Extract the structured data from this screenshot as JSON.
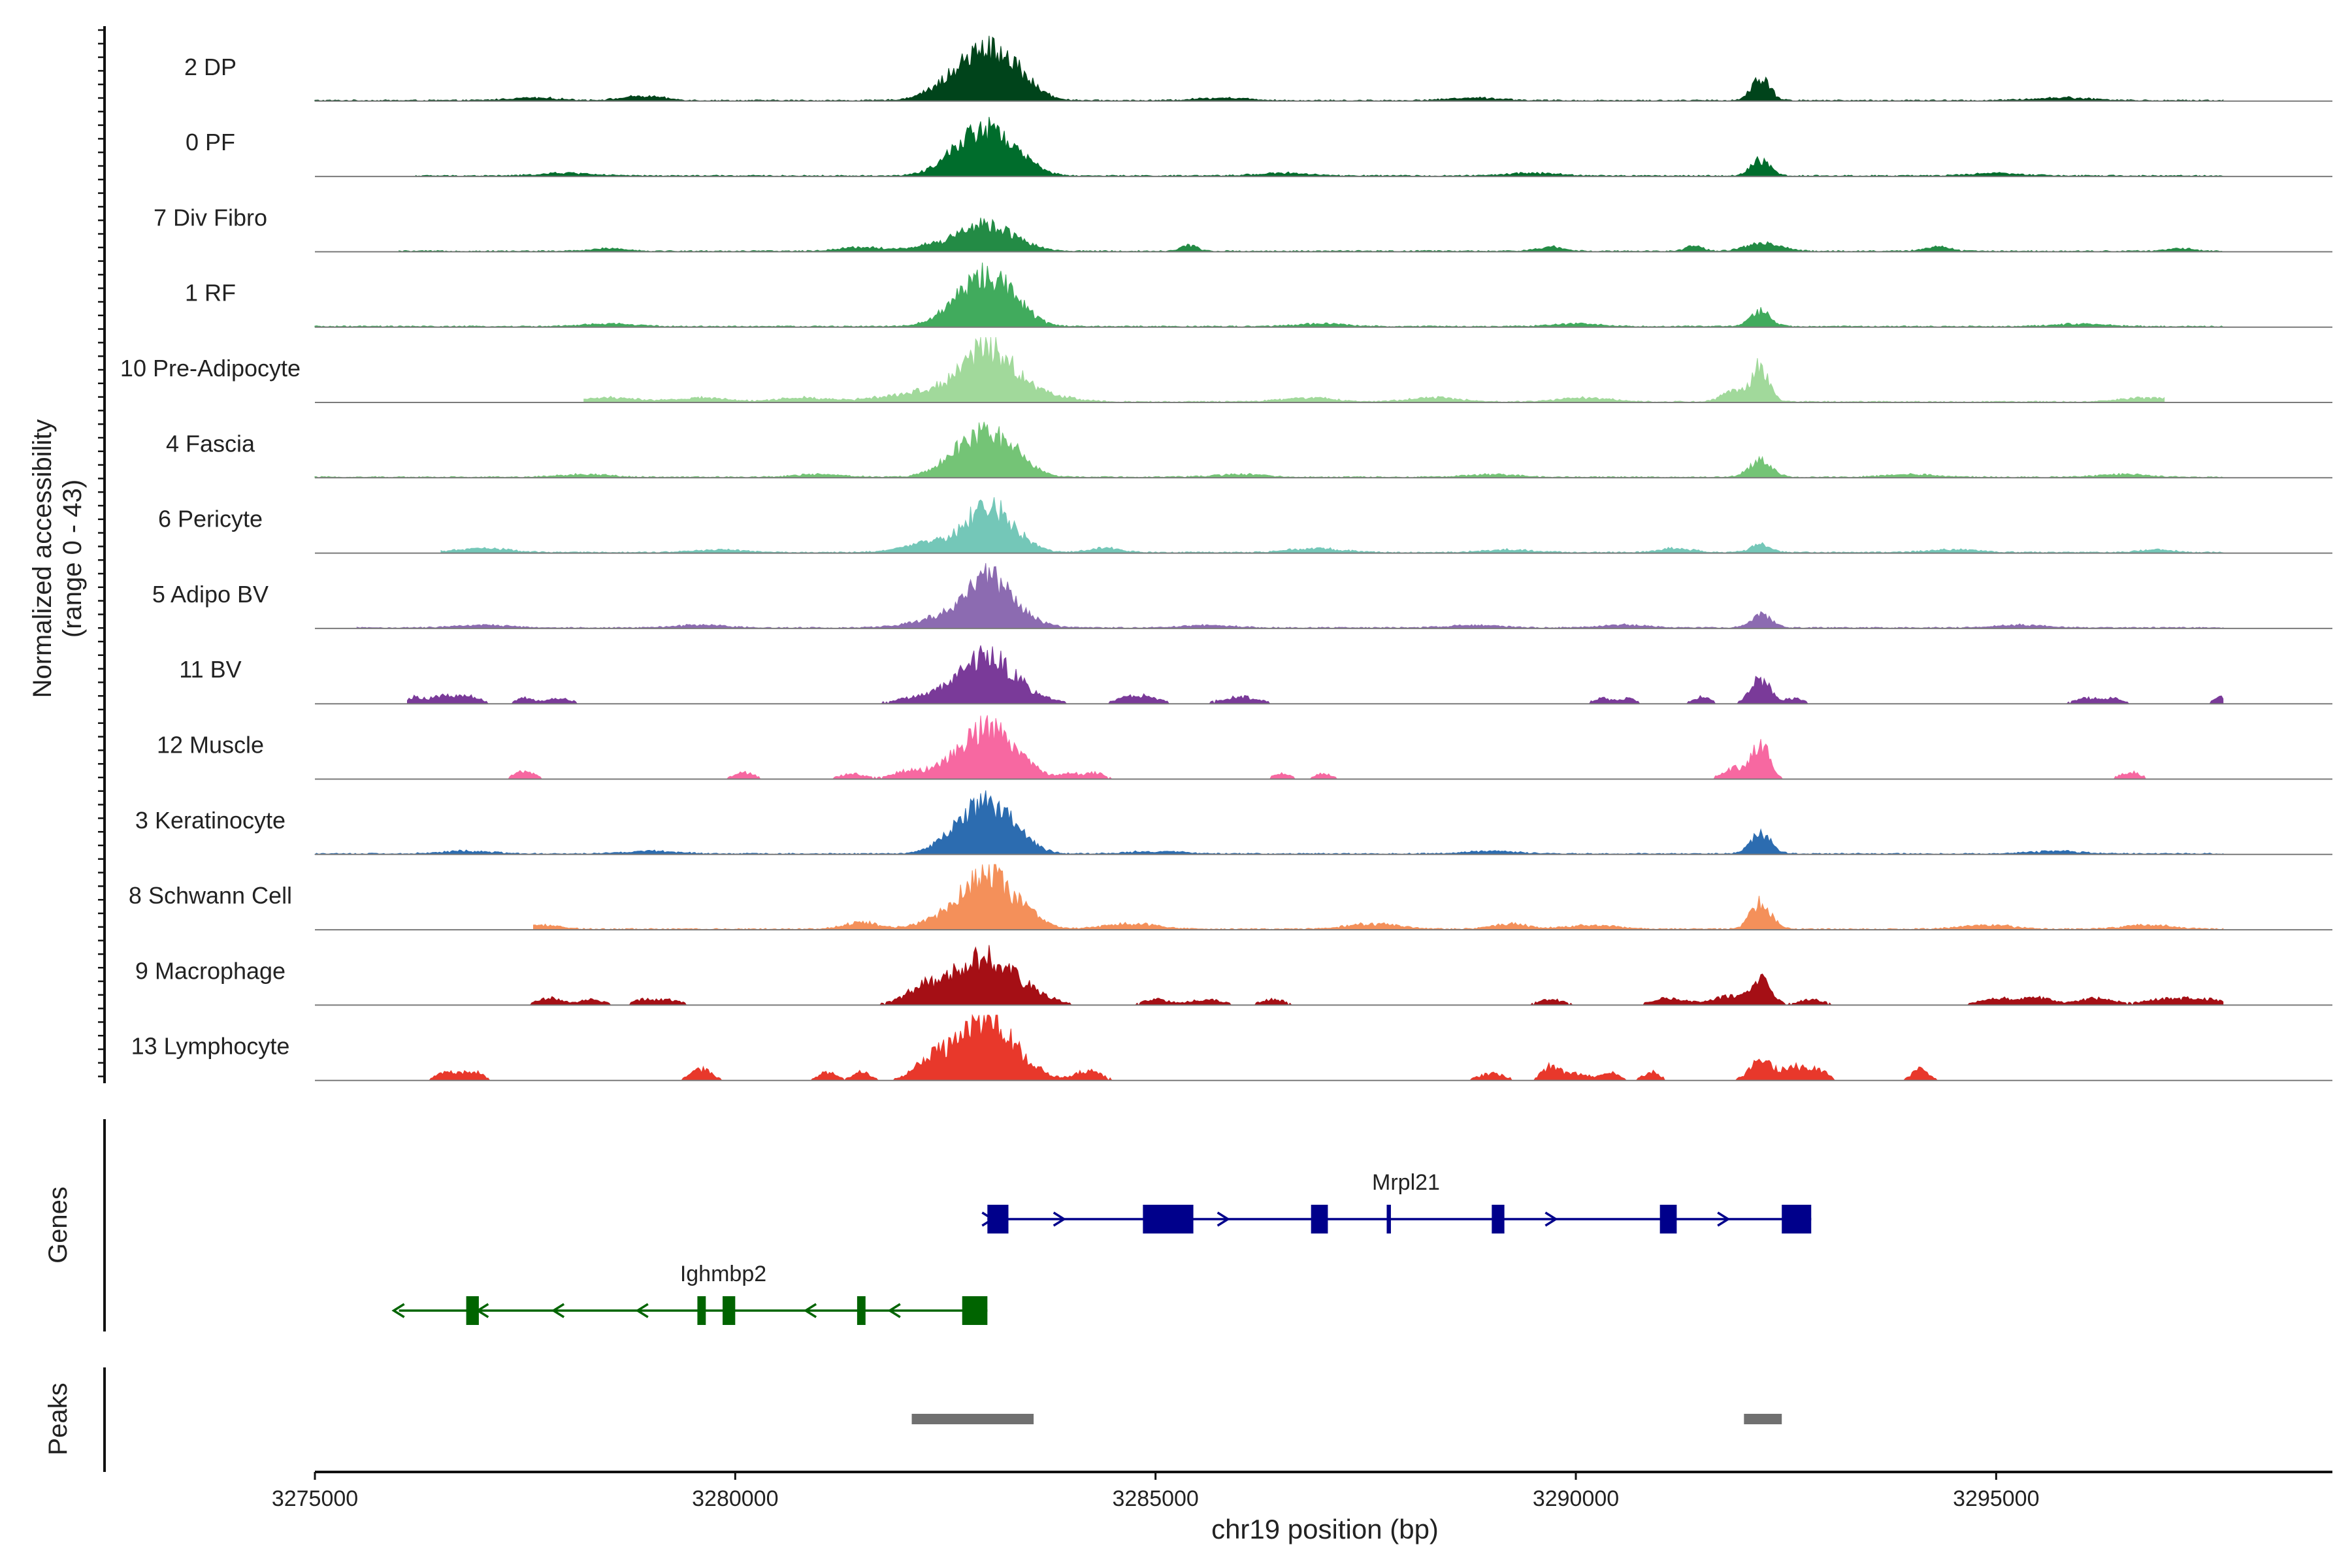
{
  "chart_data": {
    "type": "area",
    "subtype": "genome-coverage-track",
    "y_axis_title_line1": "Normalized accessibility",
    "y_axis_title_line2": "(range 0 - 43)",
    "y_range": [
      0,
      43
    ],
    "x_axis_title": "chr19 position (bp)",
    "x_range": [
      3275000,
      3299000
    ],
    "x_ticks": [
      3275000,
      3280000,
      3285000,
      3290000,
      3295000
    ],
    "x_tick_labels": [
      "3275000",
      "3280000",
      "3285000",
      "3290000",
      "3295000"
    ],
    "tracks": [
      {
        "label": "2 DP",
        "color": "#00441b",
        "coverage_start": 3275000,
        "coverage_end": 3297700,
        "peaks": [
          [
            3283000,
            34,
            330
          ],
          [
            3282600,
            7,
            300
          ],
          [
            3283350,
            6,
            220
          ],
          [
            3292200,
            16,
            110
          ],
          [
            3278900,
            3,
            250
          ],
          [
            3285800,
            2,
            300
          ],
          [
            3288800,
            2,
            300
          ],
          [
            3295800,
            2,
            350
          ],
          [
            3277600,
            2,
            300
          ]
        ],
        "sparse": false
      },
      {
        "label": "0 PF",
        "color": "#006d2c",
        "coverage_start": 3276200,
        "coverage_end": 3297700,
        "peaks": [
          [
            3283000,
            34,
            300
          ],
          [
            3282600,
            6,
            250
          ],
          [
            3283400,
            5,
            200
          ],
          [
            3292200,
            12,
            110
          ],
          [
            3278000,
            2,
            300
          ],
          [
            3286500,
            2,
            300
          ],
          [
            3289500,
            2,
            300
          ],
          [
            3295000,
            2,
            300
          ]
        ],
        "sparse": false
      },
      {
        "label": "7 Div Fibro",
        "color": "#238b45",
        "coverage_start": 3276000,
        "coverage_end": 3297700,
        "peaks": [
          [
            3283000,
            18,
            250
          ],
          [
            3282500,
            6,
            300
          ],
          [
            3283400,
            4,
            200
          ],
          [
            3292250,
            6,
            200
          ],
          [
            3281500,
            3,
            250
          ],
          [
            3285400,
            4,
            100
          ],
          [
            3289700,
            3,
            150
          ],
          [
            3291400,
            4,
            100
          ],
          [
            3294300,
            3,
            150
          ],
          [
            3278500,
            2,
            200
          ],
          [
            3297200,
            2,
            150
          ]
        ],
        "sparse": false
      },
      {
        "label": "1 RF",
        "color": "#41ab5d",
        "coverage_start": 3275000,
        "coverage_end": 3297700,
        "peaks": [
          [
            3283000,
            36,
            280
          ],
          [
            3282600,
            7,
            250
          ],
          [
            3283400,
            5,
            200
          ],
          [
            3292200,
            11,
            120
          ],
          [
            3278500,
            2,
            300
          ],
          [
            3287000,
            2,
            300
          ],
          [
            3290000,
            2,
            300
          ],
          [
            3296000,
            2,
            300
          ]
        ],
        "sparse": false
      },
      {
        "label": "10 Pre-Adipocyte",
        "color": "#a1d99b",
        "coverage_start": 3278200,
        "coverage_end": 3297000,
        "peaks": [
          [
            3283000,
            36,
            250
          ],
          [
            3282500,
            10,
            350
          ],
          [
            3283400,
            8,
            250
          ],
          [
            3292200,
            25,
            100
          ],
          [
            3291900,
            8,
            150
          ],
          [
            3278500,
            3,
            300
          ],
          [
            3279600,
            3,
            300
          ],
          [
            3280800,
            3,
            300
          ],
          [
            3281800,
            3,
            300
          ],
          [
            3283800,
            3,
            300
          ],
          [
            3286800,
            3,
            300
          ],
          [
            3288300,
            3,
            300
          ],
          [
            3290100,
            3,
            300
          ],
          [
            3296800,
            3,
            300
          ]
        ],
        "sparse": false
      },
      {
        "label": "4 Fascia",
        "color": "#74c476",
        "coverage_start": 3275000,
        "coverage_end": 3297700,
        "peaks": [
          [
            3283000,
            30,
            280
          ],
          [
            3282600,
            8,
            250
          ],
          [
            3283400,
            6,
            200
          ],
          [
            3292200,
            12,
            130
          ],
          [
            3278200,
            2,
            300
          ],
          [
            3281000,
            2,
            300
          ],
          [
            3286000,
            2,
            300
          ],
          [
            3289000,
            2,
            300
          ],
          [
            3294000,
            2,
            300
          ],
          [
            3296500,
            2,
            300
          ]
        ],
        "sparse": false
      },
      {
        "label": "6 Pericyte",
        "color": "#74c7b8",
        "coverage_start": 3276500,
        "coverage_end": 3297700,
        "peaks": [
          [
            3283000,
            34,
            250
          ],
          [
            3282300,
            7,
            300
          ],
          [
            3283400,
            5,
            200
          ],
          [
            3292200,
            6,
            120
          ],
          [
            3277000,
            3,
            300
          ],
          [
            3279800,
            2,
            300
          ],
          [
            3284400,
            3,
            200
          ],
          [
            3286900,
            3,
            300
          ],
          [
            3289200,
            2,
            300
          ],
          [
            3291200,
            3,
            200
          ],
          [
            3294500,
            2,
            300
          ],
          [
            3296900,
            2,
            200
          ]
        ],
        "sparse": false
      },
      {
        "label": "5 Adipo BV",
        "color": "#8c6bb1",
        "coverage_start": 3275500,
        "coverage_end": 3297700,
        "peaks": [
          [
            3283000,
            34,
            250
          ],
          [
            3282500,
            8,
            350
          ],
          [
            3283400,
            6,
            250
          ],
          [
            3292200,
            10,
            120
          ],
          [
            3277000,
            2,
            300
          ],
          [
            3279600,
            2,
            300
          ],
          [
            3285600,
            2,
            300
          ],
          [
            3288800,
            2,
            300
          ],
          [
            3290600,
            2,
            300
          ],
          [
            3295300,
            2,
            300
          ]
        ],
        "sparse": false
      },
      {
        "label": "11 BV",
        "color": "#7a3a99",
        "coverage_start": 3276100,
        "coverage_end": 3297700,
        "peaks": [
          [
            3283000,
            34,
            280
          ],
          [
            3282400,
            7,
            350
          ],
          [
            3283500,
            5,
            250
          ],
          [
            3292200,
            18,
            120
          ],
          [
            3291500,
            5,
            100
          ],
          [
            3276200,
            5,
            120
          ],
          [
            3276500,
            5,
            100
          ],
          [
            3276800,
            6,
            150
          ],
          [
            3277500,
            4,
            100
          ],
          [
            3277900,
            4,
            150
          ],
          [
            3284800,
            6,
            220
          ],
          [
            3286000,
            5,
            220
          ],
          [
            3290300,
            4,
            100
          ],
          [
            3290600,
            4,
            100
          ],
          [
            3292600,
            4,
            100
          ],
          [
            3296100,
            4,
            150
          ],
          [
            3296400,
            4,
            100
          ],
          [
            3297700,
            5,
            100
          ]
        ],
        "sparse": true
      },
      {
        "label": "12 Muscle",
        "color": "#f768a1",
        "coverage_start": 3277200,
        "coverage_end": 3296800,
        "peaks": [
          [
            3283000,
            36,
            280
          ],
          [
            3282500,
            7,
            300
          ],
          [
            3283400,
            8,
            200
          ],
          [
            3292200,
            26,
            100
          ],
          [
            3291900,
            8,
            150
          ],
          [
            3277500,
            6,
            120
          ],
          [
            3280100,
            5,
            120
          ],
          [
            3281400,
            4,
            150
          ],
          [
            3282000,
            4,
            150
          ],
          [
            3284000,
            4,
            150
          ],
          [
            3284300,
            4,
            100
          ],
          [
            3286500,
            4,
            100
          ],
          [
            3287000,
            4,
            100
          ],
          [
            3296600,
            5,
            120
          ]
        ],
        "sparse": true
      },
      {
        "label": "3 Keratinocyte",
        "color": "#2c6cb0",
        "coverage_start": 3275000,
        "coverage_end": 3297700,
        "peaks": [
          [
            3283000,
            34,
            280
          ],
          [
            3282600,
            7,
            250
          ],
          [
            3283400,
            5,
            200
          ],
          [
            3292200,
            14,
            120
          ],
          [
            3276800,
            2,
            300
          ],
          [
            3279000,
            2,
            300
          ],
          [
            3285000,
            2,
            300
          ],
          [
            3289000,
            2,
            300
          ],
          [
            3295700,
            2,
            300
          ]
        ],
        "sparse": false
      },
      {
        "label": "8 Schwann Cell",
        "color": "#f4905a",
        "coverage_start": 3277600,
        "coverage_end": 3297700,
        "peaks": [
          [
            3283000,
            40,
            280
          ],
          [
            3282500,
            7,
            300
          ],
          [
            3283500,
            6,
            200
          ],
          [
            3292200,
            20,
            120
          ],
          [
            3281500,
            5,
            200
          ],
          [
            3284700,
            4,
            300
          ],
          [
            3287600,
            4,
            300
          ],
          [
            3289200,
            4,
            200
          ],
          [
            3290200,
            3,
            300
          ],
          [
            3294900,
            3,
            300
          ],
          [
            3296800,
            3,
            300
          ],
          [
            3277700,
            3,
            200
          ]
        ],
        "sparse": false
      },
      {
        "label": "9 Macrophage",
        "color": "#a50f15",
        "coverage_start": 3277500,
        "coverage_end": 3297700,
        "peaks": [
          [
            3283000,
            30,
            300
          ],
          [
            3282500,
            12,
            350
          ],
          [
            3283500,
            8,
            250
          ],
          [
            3292200,
            18,
            120
          ],
          [
            3291800,
            6,
            200
          ],
          [
            3277800,
            5,
            150
          ],
          [
            3278300,
            4,
            150
          ],
          [
            3278900,
            4,
            100
          ],
          [
            3279200,
            4,
            150
          ],
          [
            3282200,
            6,
            150
          ],
          [
            3285000,
            4,
            150
          ],
          [
            3285600,
            4,
            200
          ],
          [
            3286400,
            4,
            150
          ],
          [
            3289700,
            4,
            150
          ],
          [
            3291100,
            5,
            200
          ],
          [
            3292800,
            4,
            150
          ],
          [
            3295000,
            5,
            200
          ],
          [
            3295500,
            5,
            200
          ],
          [
            3296200,
            5,
            200
          ],
          [
            3297000,
            4,
            250
          ],
          [
            3297500,
            4,
            250
          ]
        ],
        "sparse": true
      },
      {
        "label": "13 Lymphocyte",
        "color": "#e8382b",
        "coverage_start": 3276300,
        "coverage_end": 3294300,
        "peaks": [
          [
            3283000,
            40,
            250
          ],
          [
            3282600,
            16,
            300
          ],
          [
            3283400,
            10,
            250
          ],
          [
            3282300,
            9,
            150
          ],
          [
            3292200,
            14,
            130
          ],
          [
            3292600,
            10,
            150
          ],
          [
            3292900,
            7,
            100
          ],
          [
            3276600,
            6,
            150
          ],
          [
            3276900,
            6,
            100
          ],
          [
            3279600,
            8,
            120
          ],
          [
            3281100,
            6,
            100
          ],
          [
            3281500,
            6,
            100
          ],
          [
            3284200,
            7,
            150
          ],
          [
            3289000,
            5,
            150
          ],
          [
            3289700,
            10,
            100
          ],
          [
            3290000,
            5,
            150
          ],
          [
            3290400,
            6,
            100
          ],
          [
            3290900,
            6,
            100
          ],
          [
            3294100,
            8,
            100
          ]
        ],
        "sparse": true
      }
    ],
    "genes_title": "Genes",
    "genes": [
      {
        "name": "Mrpl21",
        "strand": "+",
        "color": "#00008b",
        "start": 3283000,
        "end": 3292800,
        "exons": [
          [
            3283000,
            3283250
          ],
          [
            3284850,
            3285450
          ],
          [
            3286850,
            3287050
          ],
          [
            3287750,
            3287800
          ],
          [
            3289000,
            3289150
          ],
          [
            3291000,
            3291200
          ],
          [
            3292450,
            3292800
          ]
        ],
        "arrows": [
          3283000,
          3283850,
          3285800,
          3289700,
          3291750
        ]
      },
      {
        "name": "Ighmbp2",
        "strand": "-",
        "color": "#006400",
        "start": 3276000,
        "end": 3283000,
        "exons": [
          [
            3276800,
            3276950
          ],
          [
            3279550,
            3279650
          ],
          [
            3279850,
            3280000
          ],
          [
            3281450,
            3281550
          ],
          [
            3282700,
            3283000
          ]
        ],
        "arrows": [
          3276000,
          3277000,
          3277900,
          3278900,
          3280900,
          3281900
        ]
      }
    ],
    "peaks_title": "Peaks",
    "peak_regions": [
      [
        3282100,
        3283550
      ],
      [
        3292000,
        3292450
      ]
    ],
    "peak_color": "#707070"
  }
}
